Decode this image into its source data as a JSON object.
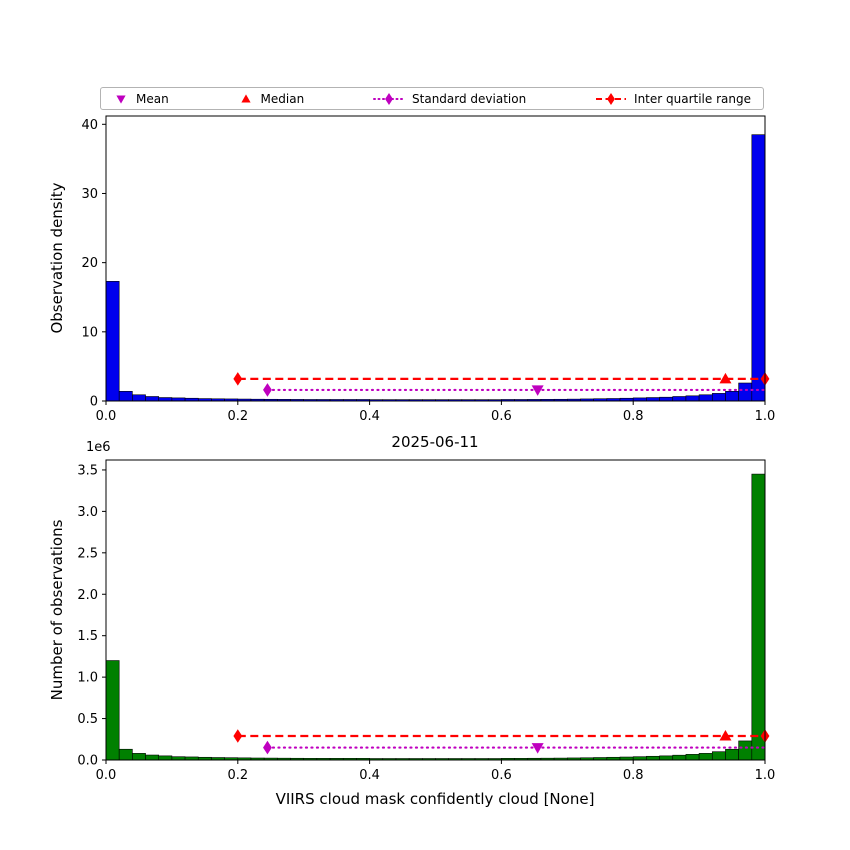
{
  "figure": {
    "date_title": "2025-06-11",
    "xlabel": "VIIRS cloud mask confidently cloud [None]",
    "top_ylabel": "Observation density",
    "bottom_ylabel": "Number of observations",
    "y_offset_text": "1e6",
    "background_color": "#ffffff"
  },
  "legend": {
    "items": [
      {
        "label": "Mean",
        "marker": "triangle-down",
        "color": "#bf00bf",
        "linestyle": "none"
      },
      {
        "label": "Median",
        "marker": "triangle-up",
        "color": "#ff0000",
        "linestyle": "none"
      },
      {
        "label": "Standard deviation",
        "marker": "diamond",
        "color": "#bf00bf",
        "linestyle": "dotted"
      },
      {
        "label": "Inter quartile range",
        "marker": "diamond",
        "color": "#ff0000",
        "linestyle": "dashed"
      }
    ]
  },
  "chart_data": [
    {
      "type": "bar",
      "subtype": "histogram",
      "ylabel": "Observation density",
      "bar_color": "#0000ee",
      "bar_edge_color": "#000000",
      "bin_start": 0,
      "bin_width": 0.02,
      "values": [
        17.3,
        1.4,
        0.9,
        0.65,
        0.5,
        0.45,
        0.4,
        0.35,
        0.32,
        0.3,
        0.28,
        0.26,
        0.25,
        0.24,
        0.23,
        0.22,
        0.22,
        0.22,
        0.22,
        0.22,
        0.2,
        0.2,
        0.2,
        0.2,
        0.2,
        0.2,
        0.2,
        0.2,
        0.2,
        0.2,
        0.22,
        0.22,
        0.23,
        0.24,
        0.25,
        0.27,
        0.3,
        0.33,
        0.36,
        0.4,
        0.45,
        0.5,
        0.55,
        0.65,
        0.75,
        0.9,
        1.1,
        1.4,
        2.6,
        38.5
      ],
      "xlim": [
        0,
        1
      ],
      "ylim": [
        0,
        41.2
      ],
      "xticks": [
        0,
        0.2,
        0.4,
        0.6,
        0.8,
        1.0
      ],
      "xtick_labels": [
        "0.0",
        "0.2",
        "0.4",
        "0.6",
        "0.8",
        "1.0"
      ],
      "yticks": [
        0,
        10,
        20,
        30,
        40
      ],
      "ytick_labels": [
        "0",
        "10",
        "20",
        "30",
        "40"
      ],
      "grid": false,
      "stats": {
        "mean_x": 0.655,
        "median_x": 0.94,
        "std_line": {
          "x1": 0.245,
          "x2": 1.065,
          "y": 1.6,
          "color": "#bf00bf"
        },
        "iqr_line": {
          "x1": 0.2,
          "x2": 1.0,
          "y": 3.2,
          "color": "#ff0000"
        },
        "mean_color": "#bf00bf",
        "median_color": "#ff0000"
      }
    },
    {
      "type": "bar",
      "subtype": "histogram",
      "ylabel": "Number of observations",
      "y_unit_multiplier": "1e6",
      "bar_color": "#008000",
      "bar_edge_color": "#000000",
      "bin_start": 0,
      "bin_width": 0.02,
      "values": [
        1.2,
        0.13,
        0.08,
        0.06,
        0.05,
        0.04,
        0.037,
        0.033,
        0.03,
        0.028,
        0.026,
        0.024,
        0.023,
        0.022,
        0.021,
        0.02,
        0.02,
        0.02,
        0.02,
        0.02,
        0.018,
        0.018,
        0.018,
        0.018,
        0.018,
        0.018,
        0.018,
        0.018,
        0.018,
        0.018,
        0.02,
        0.02,
        0.021,
        0.022,
        0.023,
        0.025,
        0.027,
        0.03,
        0.033,
        0.036,
        0.04,
        0.045,
        0.05,
        0.058,
        0.068,
        0.08,
        0.1,
        0.13,
        0.23,
        3.45
      ],
      "xlim": [
        0,
        1
      ],
      "ylim": [
        0,
        3.62
      ],
      "xticks": [
        0,
        0.2,
        0.4,
        0.6,
        0.8,
        1.0
      ],
      "xtick_labels": [
        "0.0",
        "0.2",
        "0.4",
        "0.6",
        "0.8",
        "1.0"
      ],
      "yticks": [
        0,
        0.5,
        1.0,
        1.5,
        2.0,
        2.5,
        3.0,
        3.5
      ],
      "ytick_labels": [
        "0.0",
        "0.5",
        "1.0",
        "1.5",
        "2.0",
        "2.5",
        "3.0",
        "3.5"
      ],
      "grid": false,
      "stats": {
        "mean_x": 0.655,
        "median_x": 0.94,
        "std_line": {
          "x1": 0.245,
          "x2": 1.065,
          "y": 0.15,
          "color": "#bf00bf"
        },
        "iqr_line": {
          "x1": 0.2,
          "x2": 1.0,
          "y": 0.29,
          "color": "#ff0000"
        },
        "mean_color": "#bf00bf",
        "median_color": "#ff0000"
      }
    }
  ]
}
